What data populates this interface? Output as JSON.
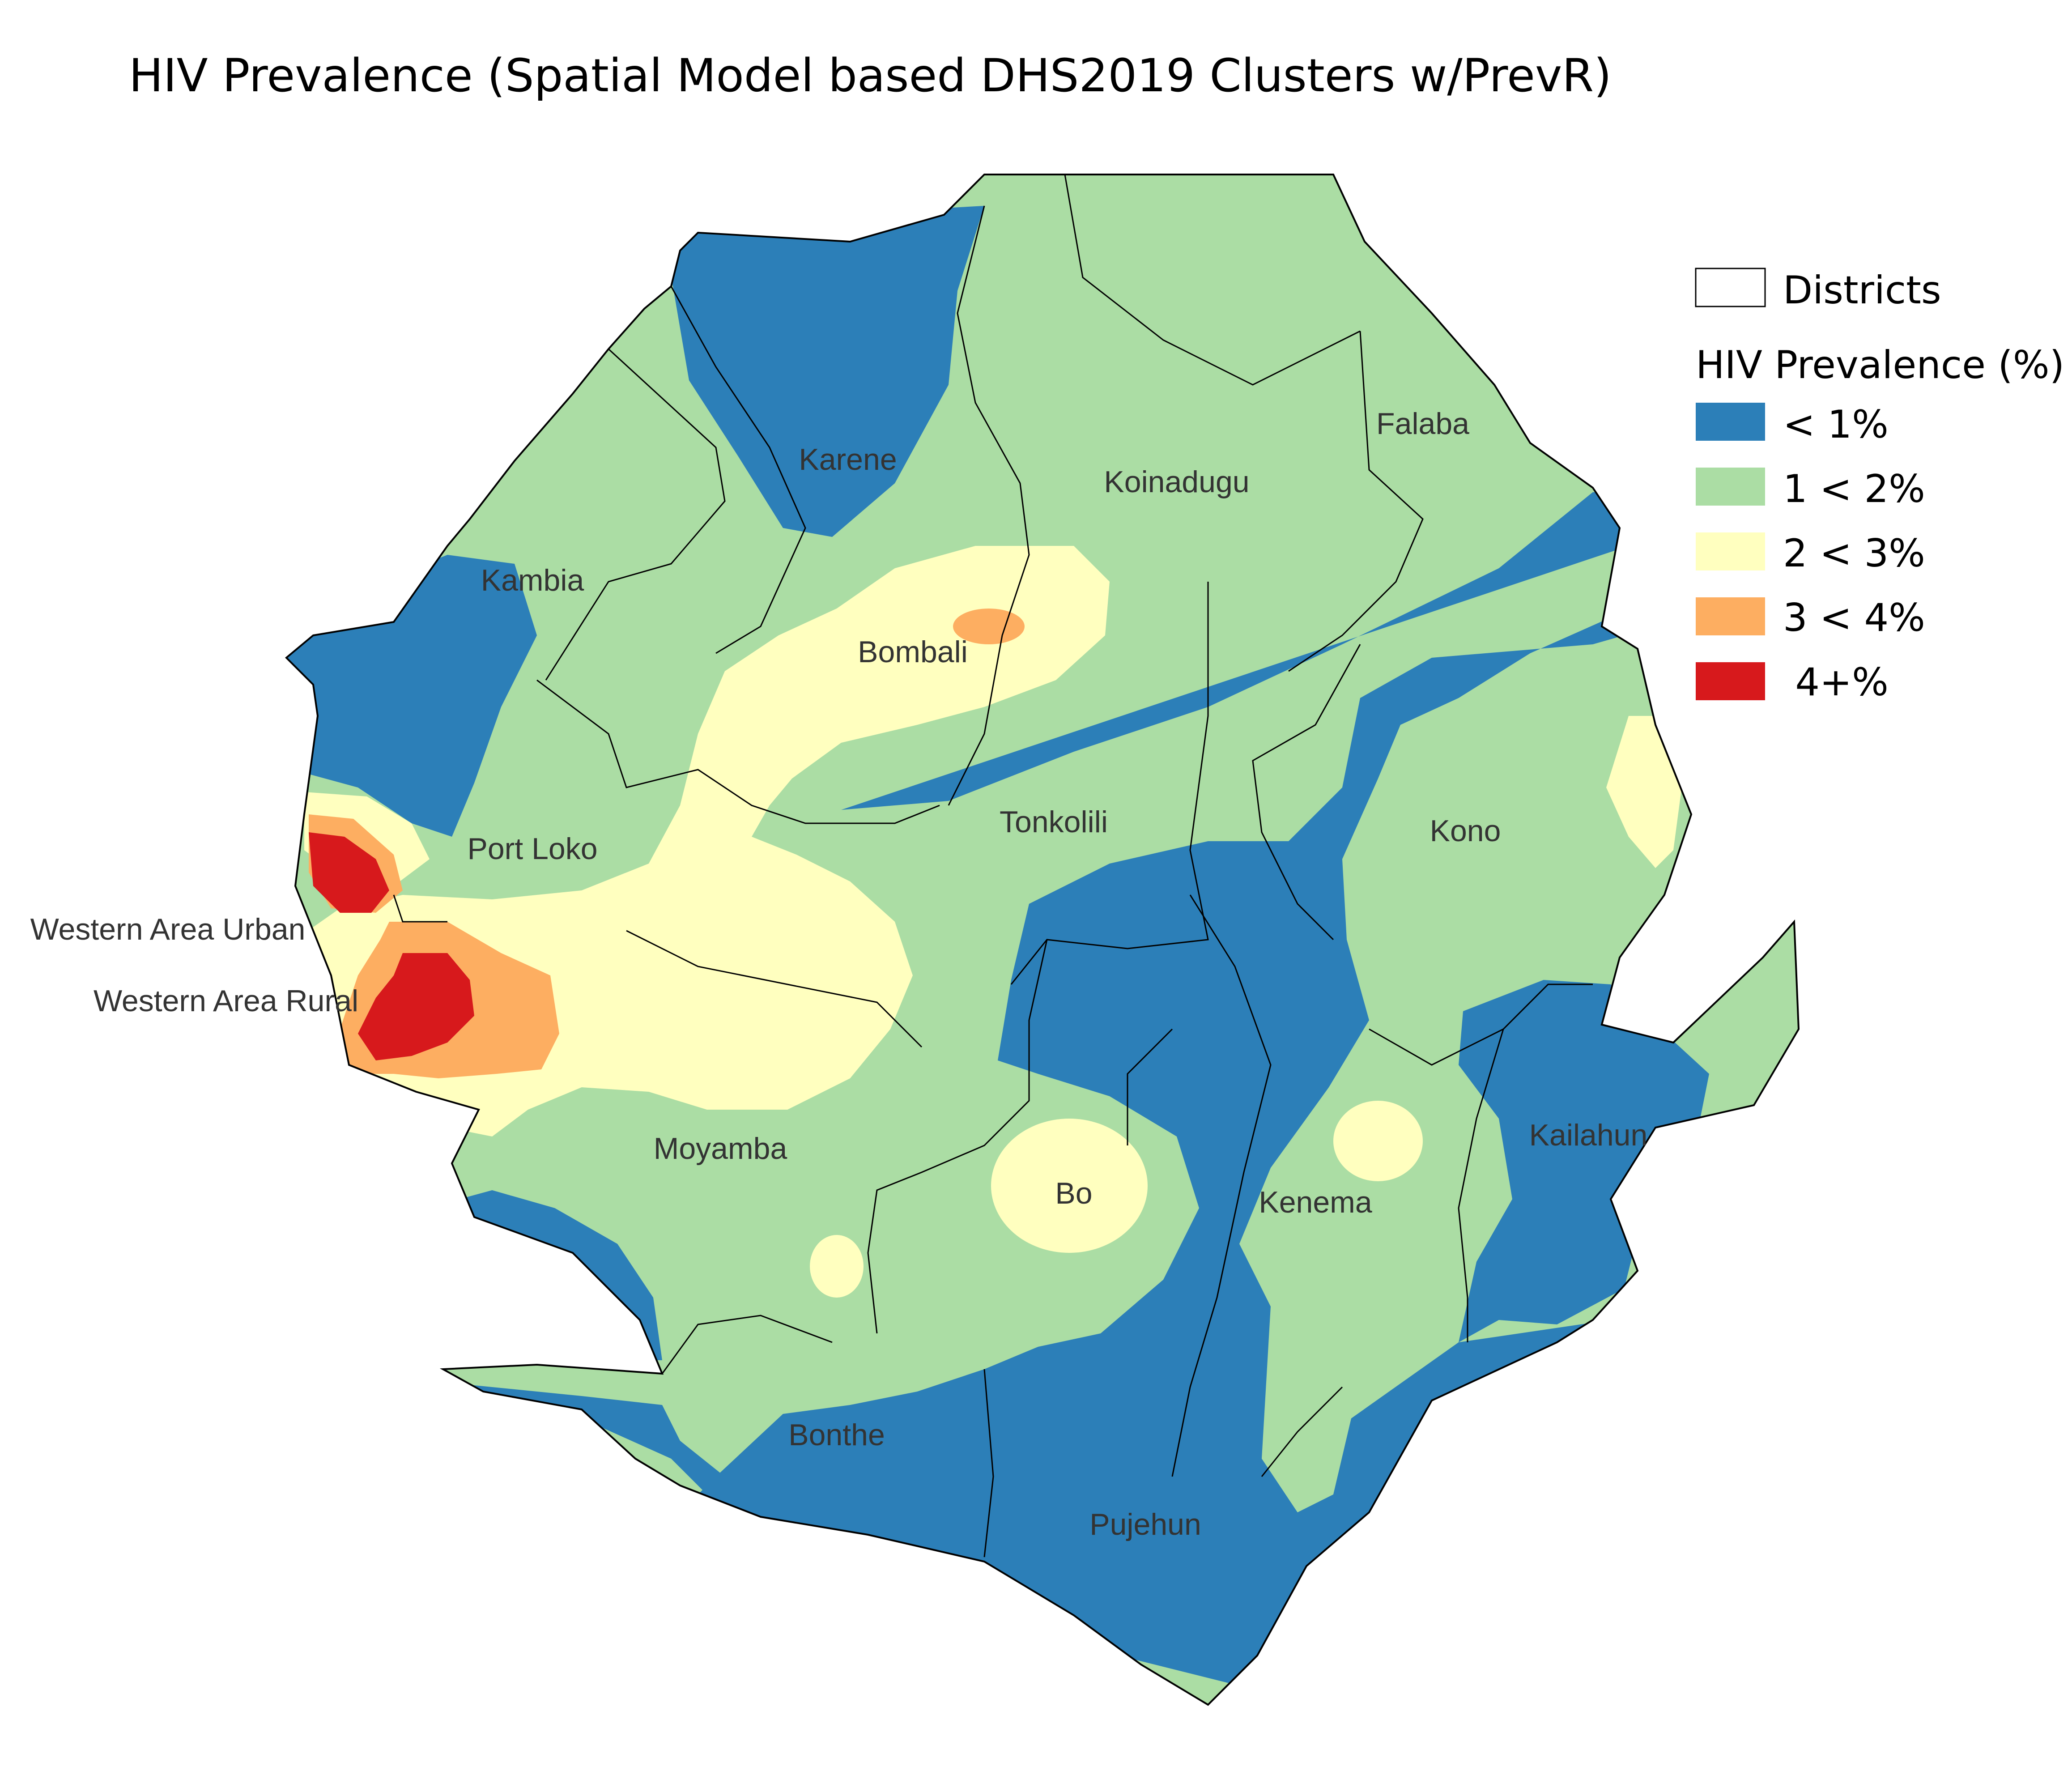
{
  "title": "HIV Prevalence (Spatial Model based DHS2019 Clusters w/PrevR)",
  "legend": {
    "districts_label": "Districts",
    "title": "HIV Prevalence (%)",
    "classes": [
      {
        "label": "< 1%",
        "color": "#2c7fb8"
      },
      {
        "label": "1 < 2%",
        "color": "#abdda4"
      },
      {
        "label": "2 < 3%",
        "color": "#ffffbf"
      },
      {
        "label": "3 < 4%",
        "color": "#fdae61"
      },
      {
        "label": " 4+%",
        "color": "#d7191c"
      }
    ]
  },
  "districts": {
    "karene": "Karene",
    "koinadugu": "Koinadugu",
    "falaba": "Falaba",
    "kambia": "Kambia",
    "bombali": "Bombali",
    "port_loko": "Port Loko",
    "tonkolili": "Tonkolili",
    "kono": "Kono",
    "western_area_urban": "Western Area Urban",
    "western_area_rural": "Western Area Rural",
    "moyamba": "Moyamba",
    "bo": "Bo",
    "kenema": "Kenema",
    "kailahun": "Kailahun",
    "bonthe": "Bonthe",
    "pujehun": "Pujehun"
  }
}
